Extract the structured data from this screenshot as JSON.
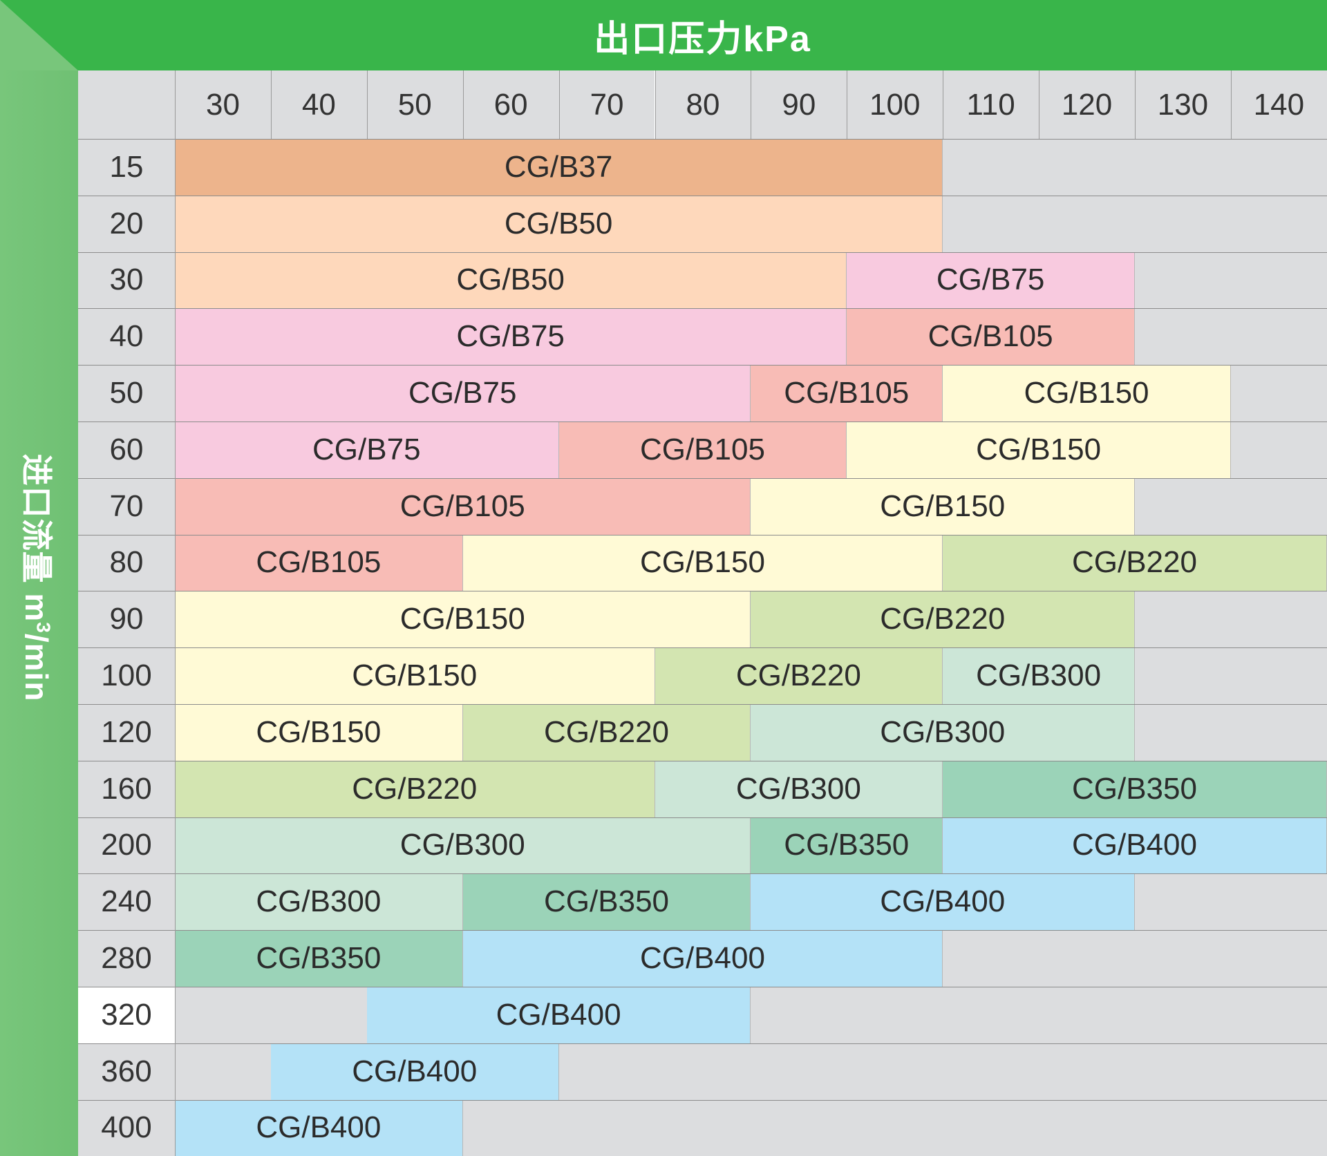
{
  "header": {
    "top_title": "出口压力kPa",
    "left_title_main": "进口流量 m",
    "left_title_sup": "3",
    "left_title_suffix": "/min"
  },
  "colors": {
    "header_green": "#39b54a",
    "side_green": "#74c478",
    "empty": "#dcdddf",
    "CG/B37": "#edb48c",
    "CG/B50": "#fed8bb",
    "CG/B75": "#f8cadf",
    "CG/B105": "#f8bcb6",
    "CG/B150": "#fffad6",
    "CG/B220": "#d3e5b1",
    "CG/B300": "#cce6d7",
    "CG/B350": "#9bd3b8",
    "CG/B400": "#b4e2f7"
  },
  "chart_data": {
    "type": "table",
    "columns": [
      "30",
      "40",
      "50",
      "60",
      "70",
      "80",
      "90",
      "100",
      "110",
      "120",
      "130",
      "140"
    ],
    "rows": [
      {
        "label": "15",
        "segments": [
          {
            "model": "CG/B37",
            "from": 30,
            "to": 100
          }
        ]
      },
      {
        "label": "20",
        "segments": [
          {
            "model": "CG/B50",
            "from": 30,
            "to": 100
          }
        ]
      },
      {
        "label": "30",
        "segments": [
          {
            "model": "CG/B50",
            "from": 30,
            "to": 90
          },
          {
            "model": "CG/B75",
            "from": 100,
            "to": 120
          }
        ]
      },
      {
        "label": "40",
        "segments": [
          {
            "model": "CG/B75",
            "from": 30,
            "to": 90
          },
          {
            "model": "CG/B105",
            "from": 100,
            "to": 120
          }
        ]
      },
      {
        "label": "50",
        "segments": [
          {
            "model": "CG/B75",
            "from": 30,
            "to": 80
          },
          {
            "model": "CG/B105",
            "from": 90,
            "to": 100
          },
          {
            "model": "CG/B150",
            "from": 110,
            "to": 130
          }
        ]
      },
      {
        "label": "60",
        "segments": [
          {
            "model": "CG/B75",
            "from": 30,
            "to": 60
          },
          {
            "model": "CG/B105",
            "from": 70,
            "to": 90
          },
          {
            "model": "CG/B150",
            "from": 100,
            "to": 130
          }
        ]
      },
      {
        "label": "70",
        "segments": [
          {
            "model": "CG/B105",
            "from": 30,
            "to": 80
          },
          {
            "model": "CG/B150",
            "from": 90,
            "to": 120
          }
        ]
      },
      {
        "label": "80",
        "segments": [
          {
            "model": "CG/B105",
            "from": 30,
            "to": 50
          },
          {
            "model": "CG/B150",
            "from": 60,
            "to": 100
          },
          {
            "model": "CG/B220",
            "from": 110,
            "to": 140
          }
        ]
      },
      {
        "label": "90",
        "segments": [
          {
            "model": "CG/B150",
            "from": 30,
            "to": 80
          },
          {
            "model": "CG/B220",
            "from": 90,
            "to": 120
          }
        ]
      },
      {
        "label": "100",
        "segments": [
          {
            "model": "CG/B150",
            "from": 30,
            "to": 70
          },
          {
            "model": "CG/B220",
            "from": 80,
            "to": 100
          },
          {
            "model": "CG/B300",
            "from": 110,
            "to": 120
          }
        ]
      },
      {
        "label": "120",
        "segments": [
          {
            "model": "CG/B150",
            "from": 30,
            "to": 50
          },
          {
            "model": "CG/B220",
            "from": 60,
            "to": 80
          },
          {
            "model": "CG/B300",
            "from": 90,
            "to": 120
          }
        ]
      },
      {
        "label": "160",
        "segments": [
          {
            "model": "CG/B220",
            "from": 30,
            "to": 70
          },
          {
            "model": "CG/B300",
            "from": 80,
            "to": 100
          },
          {
            "model": "CG/B350",
            "from": 110,
            "to": 140
          }
        ]
      },
      {
        "label": "200",
        "segments": [
          {
            "model": "CG/B300",
            "from": 30,
            "to": 80
          },
          {
            "model": "CG/B350",
            "from": 90,
            "to": 100
          },
          {
            "model": "CG/B400",
            "from": 110,
            "to": 140
          }
        ]
      },
      {
        "label": "240",
        "segments": [
          {
            "model": "CG/B300",
            "from": 30,
            "to": 50
          },
          {
            "model": "CG/B350",
            "from": 60,
            "to": 80
          },
          {
            "model": "CG/B400",
            "from": 90,
            "to": 120
          }
        ]
      },
      {
        "label": "280",
        "segments": [
          {
            "model": "CG/B350",
            "from": 30,
            "to": 50
          },
          {
            "model": "CG/B400",
            "from": 60,
            "to": 100
          }
        ]
      },
      {
        "label": "320",
        "segments": [
          {
            "model": "CG/B400",
            "from": 50,
            "to": 80
          }
        ]
      },
      {
        "label": "360",
        "segments": [
          {
            "model": "CG/B400",
            "from": 40,
            "to": 60
          }
        ]
      },
      {
        "label": "400",
        "segments": [
          {
            "model": "CG/B400",
            "from": 30,
            "to": 50
          }
        ]
      }
    ]
  }
}
